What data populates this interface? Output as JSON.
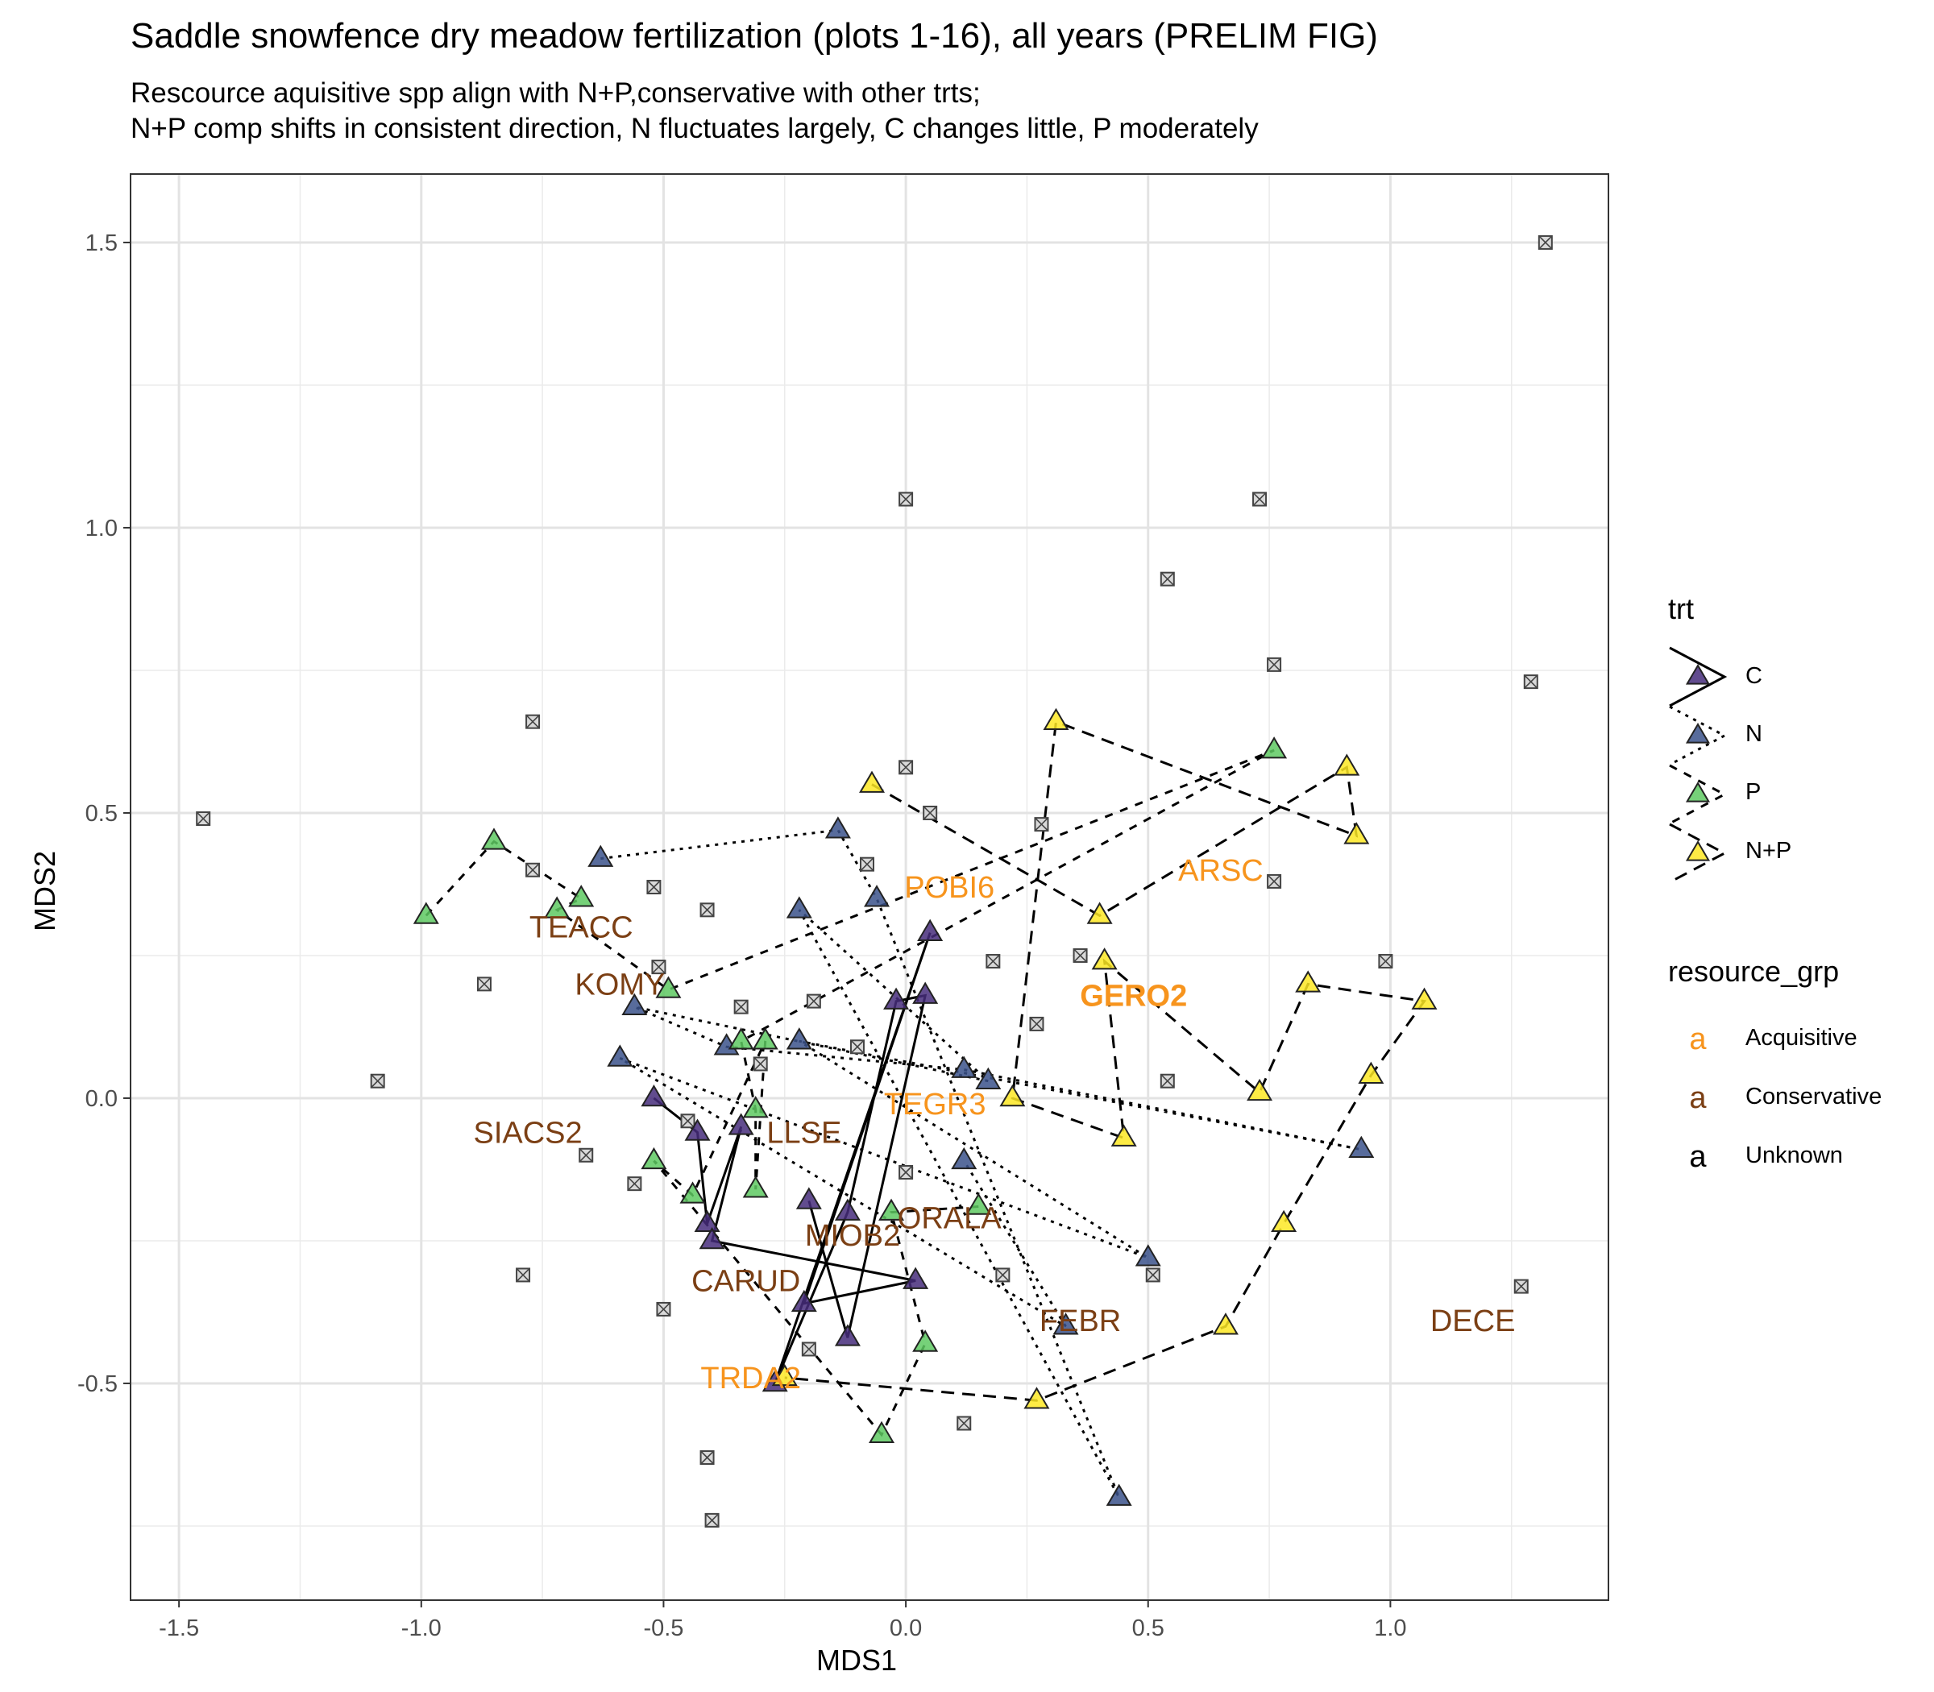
{
  "title": "Saddle snowfence dry meadow fertilization (plots 1-16), all years (PRELIM FIG)",
  "subtitle": [
    "Rescource aquisitive spp align with N+P,conservative with other trts;",
    "N+P comp shifts in consistent direction, N fluctuates largely, C changes little, P moderately"
  ],
  "chart_data": {
    "type": "scatter",
    "xlabel": "MDS1",
    "ylabel": "MDS2",
    "xlim": [
      -1.6,
      1.45
    ],
    "ylim": [
      -0.88,
      1.62
    ],
    "x_ticks": [
      -1.5,
      -1.0,
      -0.5,
      0.0,
      0.5,
      1.0
    ],
    "x_tick_labels": [
      "-1.5",
      "-1.0",
      "-0.5",
      "0.0",
      "0.5",
      "1.0"
    ],
    "y_ticks": [
      -0.5,
      0.0,
      0.5,
      1.0,
      1.5
    ],
    "y_tick_labels": [
      "-0.5",
      "0.0",
      "0.5",
      "1.0",
      "1.5"
    ],
    "grid": true,
    "legend_position": "right",
    "trt_legend": {
      "title": "trt",
      "entries": [
        {
          "label": "C",
          "color": "#472d7b",
          "linetype": "solid"
        },
        {
          "label": "N",
          "color": "#3b528b",
          "linetype": "dotted"
        },
        {
          "label": "P",
          "color": "#5ec962",
          "linetype": "dashed-short"
        },
        {
          "label": "N+P",
          "color": "#fde725",
          "linetype": "dashed"
        }
      ]
    },
    "resource_legend": {
      "title": "resource_grp",
      "entries": [
        {
          "label": "Acquisitive",
          "color": "#f7941d",
          "glyph": "a"
        },
        {
          "label": "Conservative",
          "color": "#7b3f14",
          "glyph": "a"
        },
        {
          "label": "Unknown",
          "color": "#000000",
          "glyph": "a"
        }
      ]
    },
    "trajectories": [
      {
        "trt": "C",
        "points": [
          [
            -0.52,
            0.0
          ],
          [
            -0.43,
            -0.06
          ],
          [
            -0.41,
            -0.22
          ],
          [
            -0.34,
            -0.05
          ],
          [
            -0.4,
            -0.25
          ],
          [
            0.02,
            -0.32
          ],
          [
            -0.21,
            -0.36
          ],
          [
            0.05,
            0.29
          ],
          [
            -0.27,
            -0.5
          ],
          [
            -0.12,
            -0.2
          ],
          [
            -0.02,
            0.17
          ],
          [
            0.04,
            0.18
          ],
          [
            -0.12,
            -0.42
          ],
          [
            -0.2,
            -0.18
          ]
        ]
      },
      {
        "trt": "N",
        "points": [
          [
            -0.63,
            0.42
          ],
          [
            -0.14,
            0.47
          ],
          [
            -0.06,
            0.35
          ],
          [
            0.44,
            -0.7
          ],
          [
            -0.22,
            0.33
          ],
          [
            0.17,
            0.03
          ],
          [
            -0.56,
            0.16
          ],
          [
            -0.37,
            0.09
          ],
          [
            0.12,
            0.05
          ],
          [
            0.94,
            -0.09
          ],
          [
            -0.22,
            0.1
          ],
          [
            0.5,
            -0.28
          ],
          [
            -0.59,
            0.07
          ],
          [
            0.33,
            -0.4
          ],
          [
            0.12,
            -0.11
          ]
        ]
      },
      {
        "trt": "P",
        "points": [
          [
            -0.99,
            0.32
          ],
          [
            -0.85,
            0.45
          ],
          [
            -0.67,
            0.35
          ],
          [
            -0.72,
            0.33
          ],
          [
            -0.49,
            0.19
          ],
          [
            0.76,
            0.61
          ],
          [
            -0.34,
            0.1
          ],
          [
            -0.31,
            -0.02
          ],
          [
            -0.31,
            -0.16
          ],
          [
            -0.29,
            0.1
          ],
          [
            -0.44,
            -0.17
          ],
          [
            -0.52,
            -0.11
          ],
          [
            -0.05,
            -0.59
          ],
          [
            0.04,
            -0.43
          ],
          [
            -0.03,
            -0.2
          ],
          [
            0.15,
            -0.19
          ]
        ]
      },
      {
        "trt": "N+P",
        "points": [
          [
            -0.07,
            0.55
          ],
          [
            0.4,
            0.32
          ],
          [
            0.91,
            0.58
          ],
          [
            0.93,
            0.46
          ],
          [
            0.31,
            0.66
          ],
          [
            0.22,
            0.0
          ],
          [
            0.45,
            -0.07
          ],
          [
            0.41,
            0.24
          ],
          [
            0.73,
            0.01
          ],
          [
            0.83,
            0.2
          ],
          [
            1.07,
            0.17
          ],
          [
            0.96,
            0.04
          ],
          [
            0.78,
            -0.22
          ],
          [
            0.66,
            -0.4
          ],
          [
            0.27,
            -0.53
          ],
          [
            -0.25,
            -0.49
          ]
        ]
      }
    ],
    "unknown_species_points": [
      [
        -1.45,
        0.49
      ],
      [
        -1.09,
        0.03
      ],
      [
        -0.87,
        0.2
      ],
      [
        -0.79,
        -0.31
      ],
      [
        -0.77,
        0.66
      ],
      [
        -0.77,
        0.4
      ],
      [
        -0.66,
        -0.1
      ],
      [
        -0.56,
        -0.15
      ],
      [
        -0.52,
        0.37
      ],
      [
        -0.51,
        0.23
      ],
      [
        -0.5,
        -0.37
      ],
      [
        -0.45,
        -0.04
      ],
      [
        -0.41,
        0.33
      ],
      [
        -0.41,
        -0.63
      ],
      [
        -0.4,
        -0.74
      ],
      [
        -0.34,
        0.16
      ],
      [
        -0.3,
        0.06
      ],
      [
        -0.19,
        0.17
      ],
      [
        -0.2,
        -0.44
      ],
      [
        -0.1,
        0.09
      ],
      [
        -0.08,
        0.41
      ],
      [
        0.0,
        1.05
      ],
      [
        0.0,
        0.58
      ],
      [
        0.0,
        -0.13
      ],
      [
        0.05,
        0.5
      ],
      [
        0.12,
        -0.57
      ],
      [
        0.18,
        0.24
      ],
      [
        0.2,
        -0.31
      ],
      [
        0.27,
        0.13
      ],
      [
        0.28,
        0.48
      ],
      [
        0.36,
        0.25
      ],
      [
        0.51,
        -0.31
      ],
      [
        0.54,
        0.91
      ],
      [
        0.54,
        0.03
      ],
      [
        0.73,
        1.05
      ],
      [
        0.76,
        0.76
      ],
      [
        0.76,
        0.38
      ],
      [
        0.99,
        0.24
      ],
      [
        1.27,
        -0.33
      ],
      [
        1.29,
        0.73
      ],
      [
        1.32,
        1.5
      ]
    ],
    "species_labels": [
      {
        "label": "POBI6",
        "x": 0.09,
        "y": 0.37,
        "group": "Acquisitive"
      },
      {
        "label": "ARSC",
        "x": 0.65,
        "y": 0.4,
        "group": "Acquisitive"
      },
      {
        "label": "GERO2",
        "x": 0.47,
        "y": 0.18,
        "group": "Acquisitive",
        "bold": true
      },
      {
        "label": "TEGR3",
        "x": 0.06,
        "y": -0.01,
        "group": "Acquisitive"
      },
      {
        "label": "TRDA2",
        "x": -0.32,
        "y": -0.49,
        "group": "Acquisitive"
      },
      {
        "label": "TEACC",
        "x": -0.67,
        "y": 0.3,
        "group": "Conservative"
      },
      {
        "label": "KOMY",
        "x": -0.59,
        "y": 0.2,
        "group": "Conservative"
      },
      {
        "label": "SIACS2",
        "x": -0.78,
        "y": -0.06,
        "group": "Conservative"
      },
      {
        "label": "LLSE",
        "x": -0.21,
        "y": -0.06,
        "group": "Conservative"
      },
      {
        "label": "ORALA",
        "x": 0.09,
        "y": -0.21,
        "group": "Conservative"
      },
      {
        "label": "MIOB2",
        "x": -0.11,
        "y": -0.24,
        "group": "Conservative"
      },
      {
        "label": "CARUD",
        "x": -0.33,
        "y": -0.32,
        "group": "Conservative"
      },
      {
        "label": "FEBR",
        "x": 0.36,
        "y": -0.39,
        "group": "Conservative"
      },
      {
        "label": "DECE",
        "x": 1.17,
        "y": -0.39,
        "group": "Conservative"
      }
    ]
  }
}
